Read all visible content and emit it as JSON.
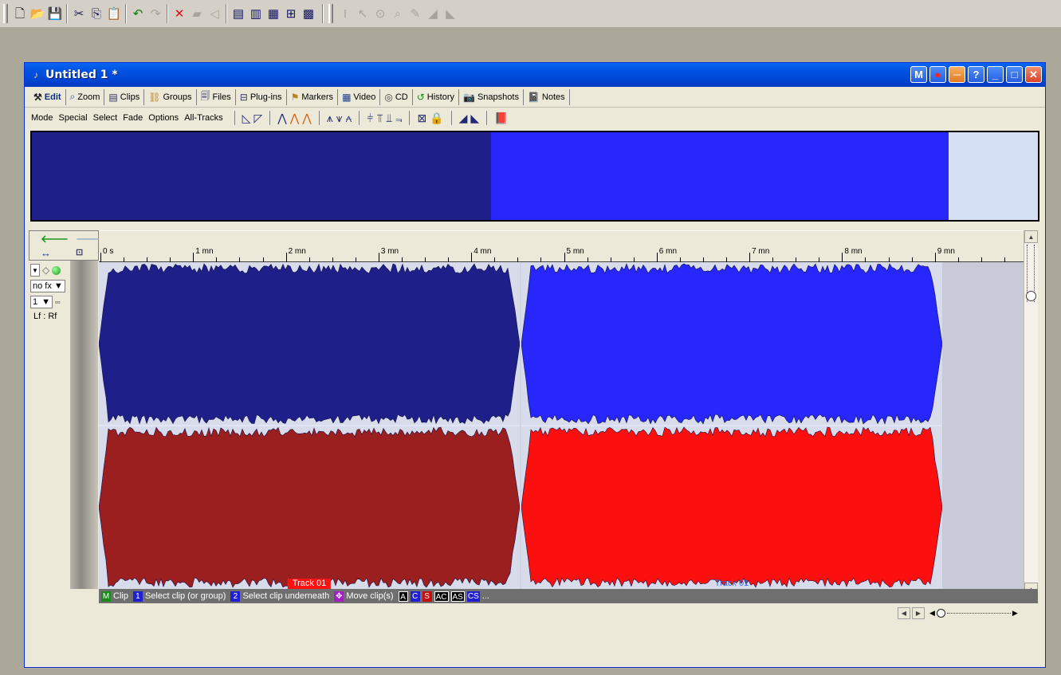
{
  "app_toolbar": {
    "groups": [
      [
        "new-file-icon",
        "open-folder-icon",
        "save-icon"
      ],
      [
        "cut-icon",
        "copy-icon",
        "paste-icon"
      ],
      [
        "undo-icon",
        "redo-icon"
      ],
      [
        "delete-icon",
        "erase-icon",
        "mute-icon"
      ],
      [
        "view-layout-1-icon",
        "view-layout-2-icon",
        "view-layout-3-icon",
        "view-layout-4-icon",
        "view-layout-5-icon"
      ],
      [
        "text-tool-icon",
        "select-tool-icon",
        "zoom-tool-icon",
        "magnify-tool-icon",
        "pencil-tool-icon",
        "fade-in-tool-icon",
        "fade-out-tool-icon"
      ]
    ]
  },
  "window": {
    "title": "Untitled 1 *",
    "title_buttons": [
      "M",
      "●",
      "─",
      "?",
      "_",
      "□",
      "✕"
    ]
  },
  "tabs": [
    {
      "label": "Edit",
      "icon": "edit-tool-icon",
      "active": true
    },
    {
      "label": "Zoom",
      "icon": "zoom-icon"
    },
    {
      "label": "Clips",
      "icon": "clips-icon"
    },
    {
      "label": "Groups",
      "icon": "groups-icon"
    },
    {
      "label": "Files",
      "icon": "files-icon"
    },
    {
      "label": "Plug-ins",
      "icon": "plugins-icon"
    },
    {
      "label": "Markers",
      "icon": "markers-icon"
    },
    {
      "label": "Video",
      "icon": "video-icon"
    },
    {
      "label": "CD",
      "icon": "cd-icon"
    },
    {
      "label": "History",
      "icon": "history-icon"
    },
    {
      "label": "Snapshots",
      "icon": "snapshots-icon"
    },
    {
      "label": "Notes",
      "icon": "notes-icon"
    }
  ],
  "menu": {
    "items": [
      "Mode",
      "Special",
      "Select",
      "Fade",
      "Options",
      "All-Tracks"
    ]
  },
  "overview": {
    "colors": [
      "#1f1f8a",
      "#2727fb",
      "#d6e0f4"
    ]
  },
  "ruler": {
    "labels": [
      "0 s",
      "1 mn",
      "2 mn",
      "3 mn",
      "4 mn",
      "5 mn",
      "6 mn",
      "7 mn",
      "8 mn",
      "9 mn"
    ]
  },
  "track": {
    "fx": "no fx",
    "number": "1",
    "route": "Lf : Rf",
    "clips": [
      {
        "label": "Track 01",
        "top_color": "#1f1f8a",
        "bottom_color": "#9b1f1f",
        "label_bg": "#ff1111",
        "label_color": "#ffffff"
      },
      {
        "label": "Track 01",
        "top_color": "#2727fb",
        "bottom_color": "#fb0f0f",
        "label_bg": "transparent",
        "label_color": "#3a6ad8"
      }
    ]
  },
  "statusbar": {
    "items": [
      {
        "key": "M",
        "key_bg": "#1a8a1a",
        "text": "Clip"
      },
      {
        "key": "1",
        "key_bg": "#2020d0",
        "text": "Select clip (or group)"
      },
      {
        "key": "2",
        "key_bg": "#2020d0",
        "text": "Select clip underneath"
      },
      {
        "key": "✥",
        "key_bg": "#a020c0",
        "text": "Move clip(s)"
      },
      {
        "key": "A",
        "key_bg": "#000000",
        "text": ""
      },
      {
        "key": "C",
        "key_bg": "#2020d0",
        "text": ""
      },
      {
        "key": "S",
        "key_bg": "#c01010",
        "text": ""
      },
      {
        "key": "AC",
        "key_bg": "#000000",
        "text": ""
      },
      {
        "key": "AS",
        "key_bg": "#000000",
        "text": ""
      },
      {
        "key": "CS",
        "key_bg": "#2020d0",
        "text": "..."
      }
    ]
  }
}
